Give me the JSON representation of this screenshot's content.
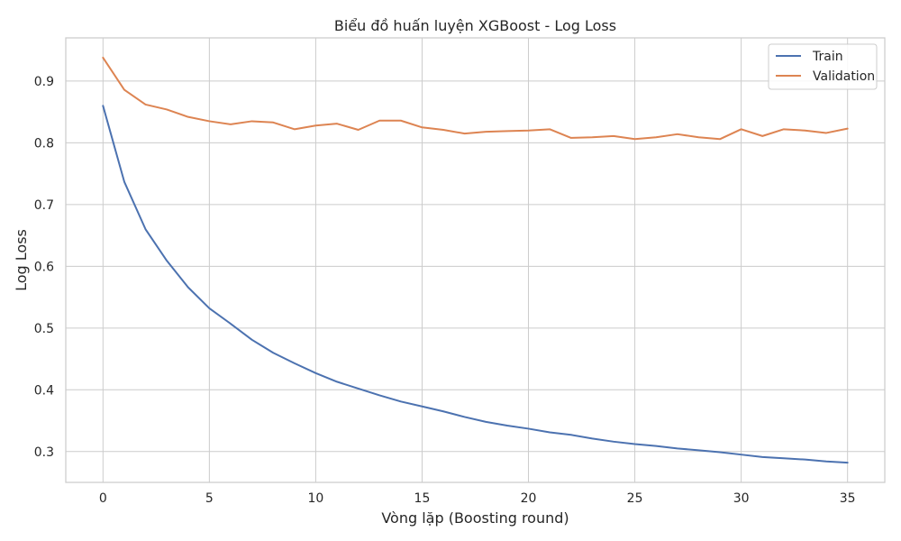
{
  "chart_data": {
    "type": "line",
    "title": "Biểu đồ huấn luyện XGBoost - Log Loss",
    "xlabel": "Vòng lặp (Boosting round)",
    "ylabel": "Log Loss",
    "xlim": [
      -1.75,
      36.75
    ],
    "ylim": [
      0.25,
      0.97
    ],
    "xticks": [
      0,
      5,
      10,
      15,
      20,
      25,
      30,
      35
    ],
    "yticks": [
      0.3,
      0.4,
      0.5,
      0.6,
      0.7,
      0.8,
      0.9
    ],
    "grid": true,
    "legend_position": "top-right",
    "x": [
      0,
      1,
      2,
      3,
      4,
      5,
      6,
      7,
      8,
      9,
      10,
      11,
      12,
      13,
      14,
      15,
      16,
      17,
      18,
      19,
      20,
      21,
      22,
      23,
      24,
      25,
      26,
      27,
      28,
      29,
      30,
      31,
      32,
      33,
      34,
      35
    ],
    "series": [
      {
        "name": "Train",
        "color": "#4c72b0",
        "values": [
          0.86,
          0.737,
          0.66,
          0.609,
          0.566,
          0.532,
          0.507,
          0.481,
          0.46,
          0.443,
          0.427,
          0.413,
          0.402,
          0.391,
          0.381,
          0.373,
          0.365,
          0.356,
          0.348,
          0.342,
          0.337,
          0.331,
          0.327,
          0.321,
          0.316,
          0.312,
          0.309,
          0.305,
          0.302,
          0.299,
          0.295,
          0.291,
          0.289,
          0.287,
          0.284,
          0.282
        ]
      },
      {
        "name": "Validation",
        "color": "#dd8452",
        "values": [
          0.938,
          0.886,
          0.862,
          0.854,
          0.842,
          0.835,
          0.83,
          0.835,
          0.833,
          0.822,
          0.828,
          0.831,
          0.821,
          0.836,
          0.836,
          0.825,
          0.821,
          0.815,
          0.818,
          0.819,
          0.82,
          0.822,
          0.808,
          0.809,
          0.811,
          0.806,
          0.809,
          0.814,
          0.809,
          0.806,
          0.822,
          0.811,
          0.822,
          0.82,
          0.816,
          0.823
        ]
      }
    ]
  }
}
